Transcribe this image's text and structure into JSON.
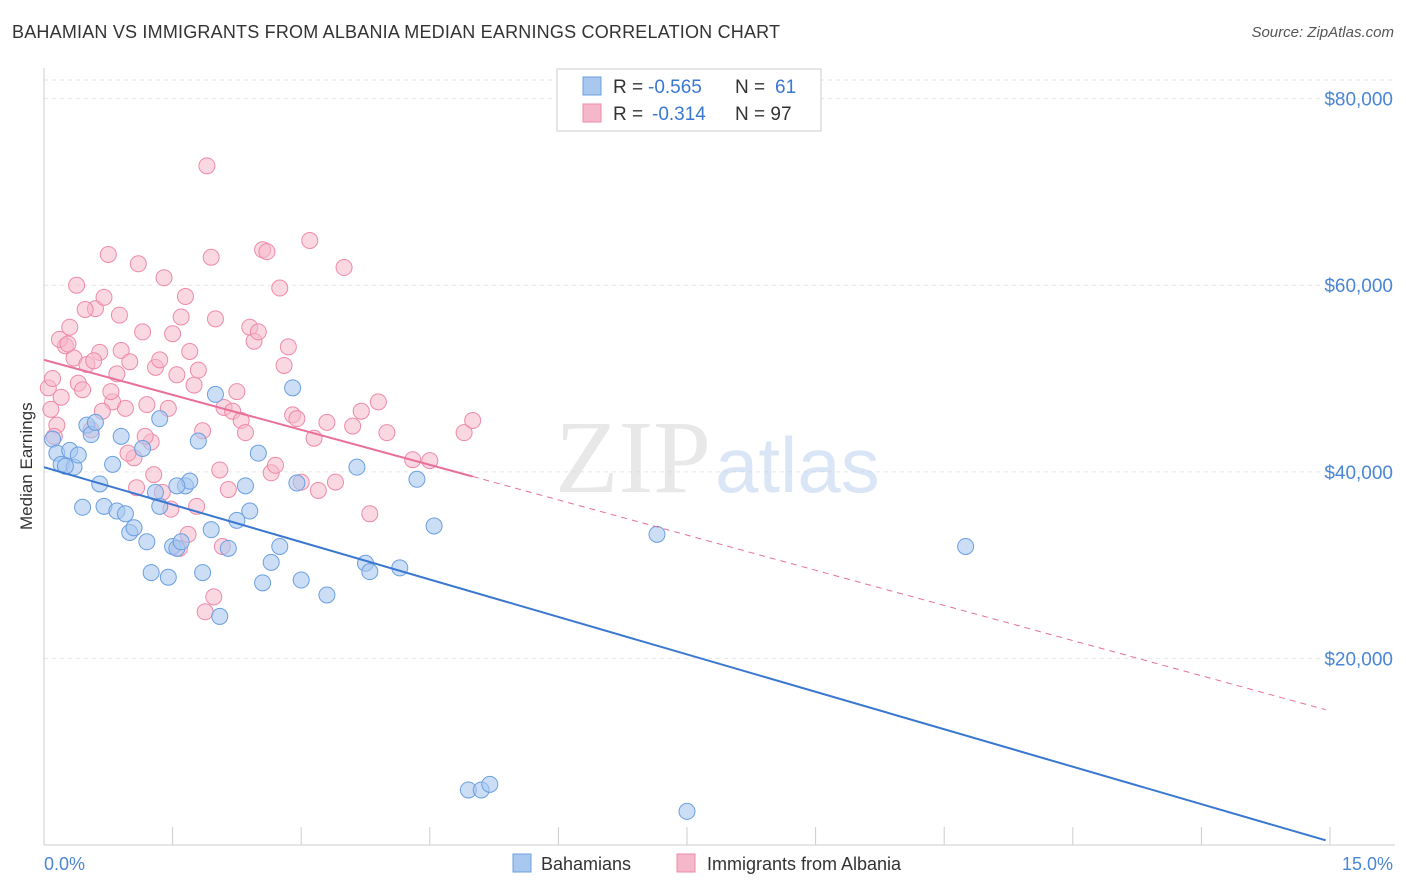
{
  "title": "BAHAMIAN VS IMMIGRANTS FROM ALBANIA MEDIAN EARNINGS CORRELATION CHART",
  "source": "Source: ZipAtlas.com",
  "watermark": {
    "zip": "ZIP",
    "atlas": "atlas"
  },
  "legend": {
    "rows": [
      {
        "r_label": "R =",
        "r_value": "-0.565",
        "n_label": "N =",
        "n_value": "61",
        "color": "#a9c8f0"
      },
      {
        "r_label": "R =",
        "r_value": "-0.314",
        "n_label": "N = 97",
        "n_value": "",
        "color": "#f5b8cb"
      }
    ]
  },
  "bottom_legend": [
    "Bahamians",
    "Immigrants from Albania"
  ],
  "chart_data": {
    "type": "scatter",
    "title": "BAHAMIAN VS IMMIGRANTS FROM ALBANIA MEDIAN EARNINGS CORRELATION CHART",
    "xlabel": "",
    "ylabel": "Median Earnings",
    "xlim": [
      0,
      15
    ],
    "ylim": [
      0,
      82000
    ],
    "x_tick_labels": [
      "0.0%",
      "15.0%"
    ],
    "y_ticks": [
      20000,
      40000,
      60000,
      80000
    ],
    "y_tick_labels": [
      "$20,000",
      "$40,000",
      "$60,000",
      "$80,000"
    ],
    "grid": true,
    "legend_position": "top-center",
    "series": [
      {
        "name": "Bahamians",
        "color": "#6a9fe0",
        "fill": "#a9c8f0",
        "trend": {
          "x": [
            0.0,
            14.95
          ],
          "y": [
            40500,
            500
          ],
          "style": "solid",
          "color": "#3a78d0"
        },
        "points": [
          [
            0.1,
            43500
          ],
          [
            0.15,
            42000
          ],
          [
            0.2,
            40800
          ],
          [
            0.3,
            42300
          ],
          [
            0.35,
            40500
          ],
          [
            0.4,
            41800
          ],
          [
            0.45,
            36200
          ],
          [
            0.5,
            45000
          ],
          [
            0.55,
            44000
          ],
          [
            0.6,
            45300
          ],
          [
            0.65,
            38700
          ],
          [
            0.7,
            36300
          ],
          [
            0.8,
            40800
          ],
          [
            0.85,
            35800
          ],
          [
            0.9,
            43800
          ],
          [
            0.95,
            35500
          ],
          [
            1.0,
            33500
          ],
          [
            1.05,
            34000
          ],
          [
            1.15,
            42500
          ],
          [
            1.2,
            32500
          ],
          [
            1.25,
            29200
          ],
          [
            1.3,
            37800
          ],
          [
            1.35,
            36300
          ],
          [
            1.35,
            45700
          ],
          [
            1.45,
            28700
          ],
          [
            1.5,
            32000
          ],
          [
            1.55,
            31800
          ],
          [
            1.6,
            32500
          ],
          [
            1.65,
            38500
          ],
          [
            1.7,
            39000
          ],
          [
            1.8,
            43300
          ],
          [
            1.85,
            29200
          ],
          [
            1.95,
            33800
          ],
          [
            2.0,
            48300
          ],
          [
            2.05,
            24500
          ],
          [
            2.15,
            31800
          ],
          [
            2.25,
            34800
          ],
          [
            2.35,
            38500
          ],
          [
            2.4,
            35800
          ],
          [
            2.55,
            28100
          ],
          [
            2.65,
            30300
          ],
          [
            2.75,
            32000
          ],
          [
            2.9,
            49000
          ],
          [
            2.95,
            38800
          ],
          [
            3.0,
            28400
          ],
          [
            3.3,
            26800
          ],
          [
            3.65,
            40500
          ],
          [
            3.75,
            30200
          ],
          [
            3.8,
            29300
          ],
          [
            4.15,
            29700
          ],
          [
            4.35,
            39200
          ],
          [
            4.55,
            34200
          ],
          [
            4.95,
            5900
          ],
          [
            5.1,
            5900
          ],
          [
            5.2,
            6500
          ],
          [
            7.15,
            33300
          ],
          [
            7.5,
            3600
          ],
          [
            10.75,
            32000
          ],
          [
            1.55,
            38500
          ],
          [
            2.5,
            42000
          ],
          [
            0.25,
            40600
          ]
        ]
      },
      {
        "name": "Immigrants from Albania",
        "color": "#ee8aa8",
        "fill": "#f5b8cb",
        "trend": {
          "x": [
            0.0,
            5.0
          ],
          "y": [
            52000,
            39500
          ],
          "style": "solid",
          "color": "#e8709a",
          "extended": {
            "x": [
              5.0,
              14.95
            ],
            "y": [
              39500,
              14500
            ],
            "style": "dashed"
          }
        },
        "points": [
          [
            0.05,
            49000
          ],
          [
            0.1,
            50000
          ],
          [
            0.15,
            45000
          ],
          [
            0.2,
            48000
          ],
          [
            0.25,
            53500
          ],
          [
            0.3,
            55500
          ],
          [
            0.35,
            52200
          ],
          [
            0.4,
            49500
          ],
          [
            0.45,
            48800
          ],
          [
            0.5,
            51500
          ],
          [
            0.55,
            44500
          ],
          [
            0.6,
            57500
          ],
          [
            0.65,
            52800
          ],
          [
            0.7,
            58700
          ],
          [
            0.75,
            63300
          ],
          [
            0.8,
            47500
          ],
          [
            0.85,
            50500
          ],
          [
            0.9,
            53000
          ],
          [
            0.95,
            46800
          ],
          [
            1.0,
            51800
          ],
          [
            1.05,
            41500
          ],
          [
            1.1,
            62300
          ],
          [
            1.15,
            55000
          ],
          [
            1.2,
            47200
          ],
          [
            1.25,
            43200
          ],
          [
            1.3,
            51200
          ],
          [
            1.35,
            52000
          ],
          [
            1.4,
            60800
          ],
          [
            1.45,
            46800
          ],
          [
            1.5,
            54800
          ],
          [
            1.55,
            50400
          ],
          [
            1.6,
            56600
          ],
          [
            1.65,
            58800
          ],
          [
            1.7,
            52900
          ],
          [
            1.75,
            49300
          ],
          [
            1.8,
            50900
          ],
          [
            1.85,
            44400
          ],
          [
            1.9,
            72800
          ],
          [
            1.95,
            63000
          ],
          [
            2.0,
            56400
          ],
          [
            2.05,
            40200
          ],
          [
            2.1,
            46900
          ],
          [
            2.15,
            38100
          ],
          [
            2.2,
            46500
          ],
          [
            2.25,
            48600
          ],
          [
            2.3,
            45500
          ],
          [
            2.35,
            44200
          ],
          [
            2.4,
            55500
          ],
          [
            2.45,
            54000
          ],
          [
            2.5,
            55000
          ],
          [
            2.55,
            63800
          ],
          [
            2.6,
            63600
          ],
          [
            2.65,
            39900
          ],
          [
            2.7,
            40700
          ],
          [
            2.75,
            59700
          ],
          [
            2.8,
            51400
          ],
          [
            2.85,
            53400
          ],
          [
            2.9,
            46100
          ],
          [
            2.95,
            45700
          ],
          [
            3.0,
            38900
          ],
          [
            3.1,
            64800
          ],
          [
            3.15,
            43600
          ],
          [
            3.2,
            38000
          ],
          [
            3.3,
            45300
          ],
          [
            3.4,
            38900
          ],
          [
            3.5,
            61900
          ],
          [
            3.6,
            44900
          ],
          [
            3.7,
            46500
          ],
          [
            3.8,
            35500
          ],
          [
            3.9,
            47500
          ],
          [
            4.0,
            44200
          ],
          [
            4.3,
            41300
          ],
          [
            4.5,
            41200
          ],
          [
            4.9,
            44200
          ],
          [
            5.0,
            45500
          ],
          [
            0.08,
            46700
          ],
          [
            0.12,
            43800
          ],
          [
            0.18,
            54200
          ],
          [
            0.28,
            53700
          ],
          [
            0.38,
            60000
          ],
          [
            0.48,
            57400
          ],
          [
            0.58,
            51900
          ],
          [
            0.68,
            46500
          ],
          [
            0.78,
            48600
          ],
          [
            0.88,
            56800
          ],
          [
            0.98,
            42000
          ],
          [
            1.08,
            38300
          ],
          [
            1.18,
            43800
          ],
          [
            1.28,
            39700
          ],
          [
            1.38,
            37800
          ],
          [
            1.48,
            36000
          ],
          [
            1.58,
            31800
          ],
          [
            1.68,
            33300
          ],
          [
            1.78,
            36300
          ],
          [
            1.88,
            25000
          ],
          [
            1.98,
            26600
          ],
          [
            2.08,
            32000
          ]
        ]
      }
    ]
  }
}
